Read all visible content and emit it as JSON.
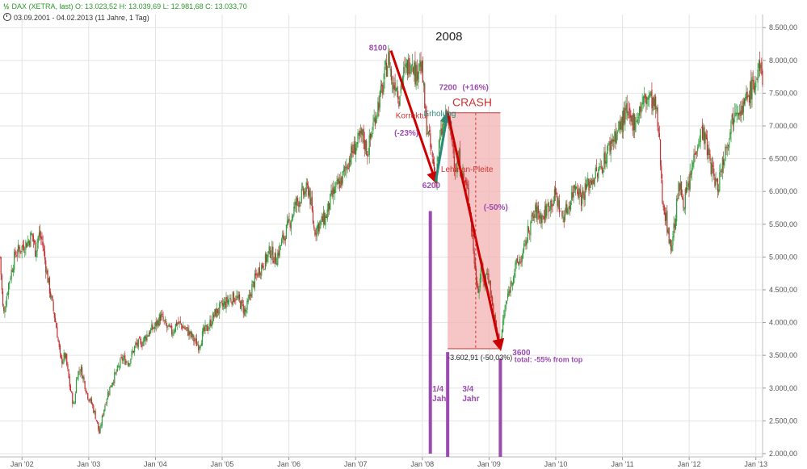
{
  "header": {
    "symbol_glyph": "½",
    "line1": "DAX (XETRA, last)  O: 13.023,52  H: 13.039,69  L: 12.981,68  C: 13.033,70",
    "line2": "03.09.2001 - 04.02.2013   (11 Jahre, 1 Tag)"
  },
  "chart_data": {
    "type": "candlestick",
    "title": "2008",
    "x_tick_labels": [
      "Jan '02",
      "Jan '03",
      "Jan '04",
      "Jan '05",
      "Jan '06",
      "Jan '07",
      "Jan '08",
      "Jan '09",
      "Jan '10",
      "Jan '11",
      "Jan '12",
      "Jan '13"
    ],
    "y_tick_labels": [
      "2.000,00",
      "2.500,00",
      "3.000,00",
      "3.500,00",
      "4.000,00",
      "4.500,00",
      "5.000,00",
      "5.500,00",
      "6.000,00",
      "6.500,00",
      "7.000,00",
      "7.500,00",
      "8.000,00",
      "8.500,00"
    ],
    "ylim": [
      1950,
      8700
    ],
    "xlim": [
      2001.67,
      2013.1
    ],
    "series_points": [
      [
        2001.67,
        5000
      ],
      [
        2001.72,
        4100
      ],
      [
        2001.8,
        4600
      ],
      [
        2001.9,
        5050
      ],
      [
        2002.0,
        5150
      ],
      [
        2002.1,
        5250
      ],
      [
        2002.15,
        5350
      ],
      [
        2002.2,
        5100
      ],
      [
        2002.25,
        5350
      ],
      [
        2002.3,
        5250
      ],
      [
        2002.38,
        4700
      ],
      [
        2002.45,
        4300
      ],
      [
        2002.52,
        3900
      ],
      [
        2002.58,
        3400
      ],
      [
        2002.65,
        3500
      ],
      [
        2002.72,
        3000
      ],
      [
        2002.78,
        2700
      ],
      [
        2002.82,
        3200
      ],
      [
        2002.88,
        3300
      ],
      [
        2002.93,
        3100
      ],
      [
        2002.98,
        2900
      ],
      [
        2003.05,
        2750
      ],
      [
        2003.12,
        2500
      ],
      [
        2003.16,
        2300
      ],
      [
        2003.22,
        2650
      ],
      [
        2003.28,
        2900
      ],
      [
        2003.35,
        3100
      ],
      [
        2003.42,
        3250
      ],
      [
        2003.5,
        3450
      ],
      [
        2003.6,
        3400
      ],
      [
        2003.7,
        3650
      ],
      [
        2003.8,
        3700
      ],
      [
        2003.9,
        3850
      ],
      [
        2004.0,
        3950
      ],
      [
        2004.08,
        4100
      ],
      [
        2004.15,
        3950
      ],
      [
        2004.25,
        3850
      ],
      [
        2004.32,
        4000
      ],
      [
        2004.4,
        3950
      ],
      [
        2004.5,
        3850
      ],
      [
        2004.6,
        3700
      ],
      [
        2004.65,
        3650
      ],
      [
        2004.72,
        3850
      ],
      [
        2004.8,
        3950
      ],
      [
        2004.9,
        4150
      ],
      [
        2005.0,
        4250
      ],
      [
        2005.1,
        4350
      ],
      [
        2005.2,
        4400
      ],
      [
        2005.3,
        4250
      ],
      [
        2005.35,
        4150
      ],
      [
        2005.45,
        4550
      ],
      [
        2005.55,
        4800
      ],
      [
        2005.65,
        4950
      ],
      [
        2005.72,
        5100
      ],
      [
        2005.8,
        4950
      ],
      [
        2005.9,
        5250
      ],
      [
        2006.0,
        5500
      ],
      [
        2006.1,
        5800
      ],
      [
        2006.2,
        5950
      ],
      [
        2006.3,
        6050
      ],
      [
        2006.38,
        5400
      ],
      [
        2006.45,
        5500
      ],
      [
        2006.55,
        5600
      ],
      [
        2006.65,
        5950
      ],
      [
        2006.8,
        6200
      ],
      [
        2006.9,
        6500
      ],
      [
        2007.0,
        6700
      ],
      [
        2007.1,
        6850
      ],
      [
        2007.18,
        6600
      ],
      [
        2007.3,
        7200
      ],
      [
        2007.4,
        7550
      ],
      [
        2007.46,
        7900
      ],
      [
        2007.5,
        8050
      ],
      [
        2007.55,
        7600
      ],
      [
        2007.6,
        7700
      ],
      [
        2007.65,
        7450
      ],
      [
        2007.7,
        7750
      ],
      [
        2007.78,
        7900
      ],
      [
        2007.85,
        8050
      ],
      [
        2007.9,
        7750
      ],
      [
        2007.95,
        8000
      ],
      [
        2008.0,
        7800
      ],
      [
        2008.05,
        7100
      ],
      [
        2008.1,
        6800
      ],
      [
        2008.15,
        6500
      ],
      [
        2008.2,
        6200
      ],
      [
        2008.25,
        6700
      ],
      [
        2008.32,
        7050
      ],
      [
        2008.38,
        7150
      ],
      [
        2008.45,
        6700
      ],
      [
        2008.5,
        6350
      ],
      [
        2008.55,
        6500
      ],
      [
        2008.6,
        6250
      ],
      [
        2008.65,
        6100
      ],
      [
        2008.7,
        5900
      ],
      [
        2008.75,
        5300
      ],
      [
        2008.8,
        4700
      ],
      [
        2008.85,
        4500
      ],
      [
        2008.88,
        4900
      ],
      [
        2008.92,
        4600
      ],
      [
        2008.98,
        4800
      ],
      [
        2009.02,
        4500
      ],
      [
        2009.07,
        4100
      ],
      [
        2009.12,
        3850
      ],
      [
        2009.17,
        3650
      ],
      [
        2009.22,
        4100
      ],
      [
        2009.28,
        4400
      ],
      [
        2009.35,
        4700
      ],
      [
        2009.42,
        4900
      ],
      [
        2009.5,
        5000
      ],
      [
        2009.6,
        5450
      ],
      [
        2009.7,
        5700
      ],
      [
        2009.8,
        5600
      ],
      [
        2009.9,
        5800
      ],
      [
        2010.0,
        5950
      ],
      [
        2010.1,
        5600
      ],
      [
        2010.2,
        5800
      ],
      [
        2010.3,
        6150
      ],
      [
        2010.38,
        5900
      ],
      [
        2010.45,
        6050
      ],
      [
        2010.55,
        6200
      ],
      [
        2010.65,
        6300
      ],
      [
        2010.75,
        6550
      ],
      [
        2010.85,
        6800
      ],
      [
        2010.95,
        6950
      ],
      [
        2011.05,
        7200
      ],
      [
        2011.12,
        7050
      ],
      [
        2011.2,
        7100
      ],
      [
        2011.3,
        7350
      ],
      [
        2011.4,
        7450
      ],
      [
        2011.5,
        7250
      ],
      [
        2011.55,
        6800
      ],
      [
        2011.6,
        5900
      ],
      [
        2011.65,
        5600
      ],
      [
        2011.7,
        5300
      ],
      [
        2011.72,
        5100
      ],
      [
        2011.78,
        5500
      ],
      [
        2011.85,
        6100
      ],
      [
        2011.92,
        5850
      ],
      [
        2012.0,
        6100
      ],
      [
        2012.1,
        6700
      ],
      [
        2012.2,
        6950
      ],
      [
        2012.28,
        6600
      ],
      [
        2012.35,
        6300
      ],
      [
        2012.42,
        6050
      ],
      [
        2012.5,
        6450
      ],
      [
        2012.6,
        6900
      ],
      [
        2012.7,
        7350
      ],
      [
        2012.8,
        7250
      ],
      [
        2012.9,
        7500
      ],
      [
        2013.0,
        7700
      ],
      [
        2013.05,
        7850
      ],
      [
        2013.1,
        7750
      ]
    ]
  },
  "annotations": {
    "label_8100": "8100",
    "label_7200": "7200",
    "label_6200": "6200",
    "label_3600": "3600",
    "korrektur": "Korrektur",
    "minus23": "(-23%)",
    "erholung": "Erholung",
    "plus16": "(+16%)",
    "crash": "CRASH",
    "lehman": "Lehman-Pleite",
    "minus50": "(-50%)",
    "measure": "-3.602,91 (-50,03%)",
    "total": "total: -55% from top",
    "quarter_line1": "1/4",
    "quarter_line2": "Jahr",
    "three_quarter_line1": "3/4",
    "three_quarter_line2": "Jahr"
  },
  "colors": {
    "up": "#2e9b3a",
    "down": "#c03030",
    "grid": "#e3e3e3",
    "arrow": "#cc0000",
    "recovery_arrow": "#2a8a7a",
    "crash_fill": "#f3b3b3",
    "purple": "#9b4bb0",
    "axis_text": "#555555"
  }
}
